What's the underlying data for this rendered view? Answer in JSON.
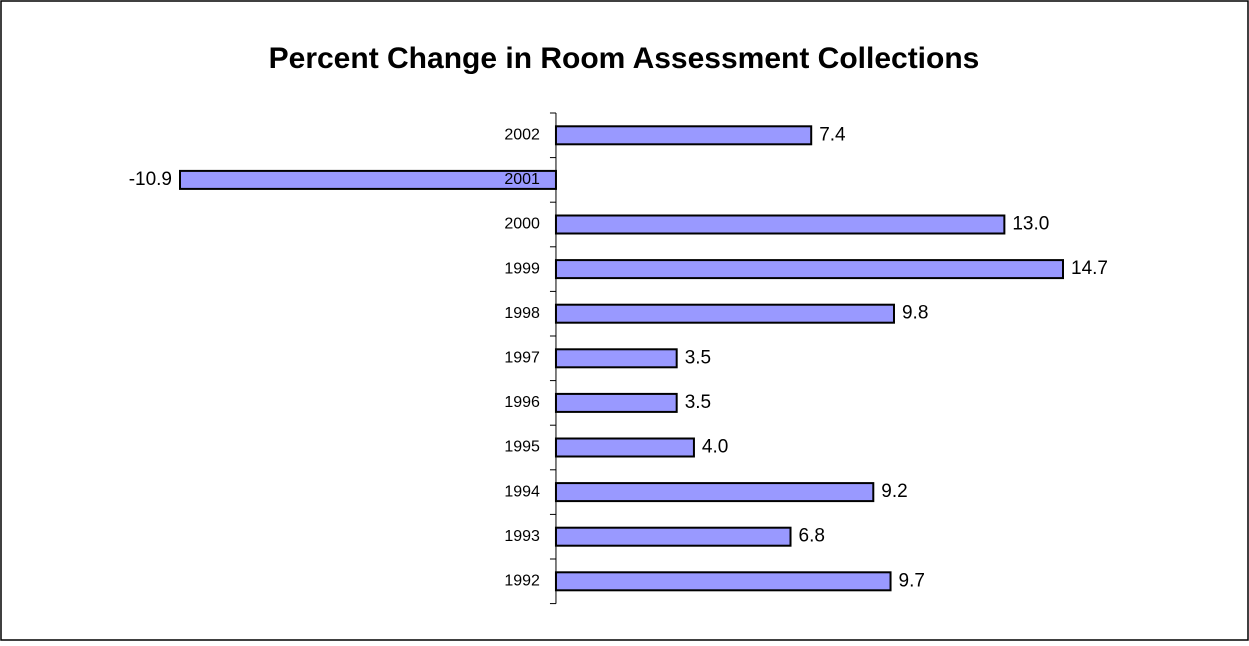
{
  "chart_data": {
    "type": "hbar",
    "title": "Percent Change in Room Assessment Collections",
    "categories": [
      "2002",
      "2001",
      "2000",
      "1999",
      "1998",
      "1997",
      "1996",
      "1995",
      "1994",
      "1993",
      "1992"
    ],
    "values": [
      7.4,
      -10.9,
      13.0,
      14.7,
      9.8,
      3.5,
      3.5,
      4.0,
      9.2,
      6.8,
      9.7
    ],
    "value_labels": [
      "7.4",
      "-10.9",
      "13.0",
      "14.7",
      "9.8",
      "3.5",
      "3.5",
      "4.0",
      "9.2",
      "6.8",
      "9.7"
    ],
    "color": "#9999ff"
  }
}
